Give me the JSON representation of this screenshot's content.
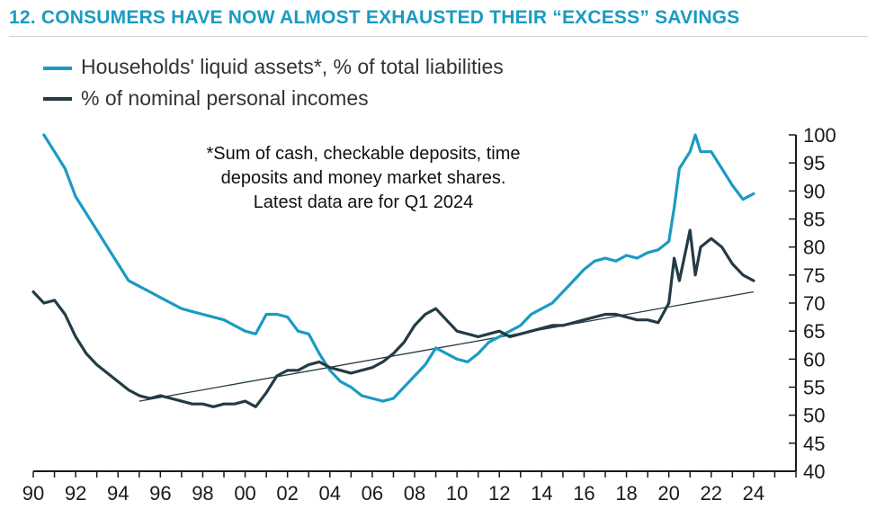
{
  "title": "12. CONSUMERS HAVE NOW ALMOST EXHAUSTED THEIR “EXCESS” SAVINGS",
  "legend": [
    {
      "label": "Households' liquid assets*, % of total liabilities",
      "color": "#1a9bc2"
    },
    {
      "label": "% of nominal personal incomes",
      "color": "#243b45"
    }
  ],
  "note": [
    "*Sum of cash, checkable deposits, time",
    "deposits and money market shares.",
    "Latest data are for Q1 2024"
  ],
  "chart_data": {
    "type": "line",
    "title": "12. CONSUMERS HAVE NOW ALMOST EXHAUSTED THEIR “EXCESS” SAVINGS",
    "x_ticks": [
      "90",
      "92",
      "94",
      "96",
      "98",
      "00",
      "02",
      "04",
      "06",
      "08",
      "10",
      "12",
      "14",
      "16",
      "18",
      "20",
      "22",
      "24"
    ],
    "y_ticks": [
      40,
      45,
      50,
      55,
      60,
      65,
      70,
      75,
      80,
      85,
      90,
      95,
      100
    ],
    "xlim": [
      1990,
      2026
    ],
    "ylim": [
      40,
      100
    ],
    "y_axis_side": "right",
    "grid": false,
    "legend_position": "top-left",
    "series": [
      {
        "name": "Households' liquid assets*, % of total liabilities",
        "color": "#1a9bc2",
        "x": [
          1990.5,
          1991,
          1991.5,
          1992,
          1992.5,
          1993,
          1993.5,
          1994,
          1994.5,
          1995,
          1995.5,
          1996,
          1996.5,
          1997,
          1997.5,
          1998,
          1998.5,
          1999,
          1999.5,
          2000,
          2000.5,
          2001,
          2001.5,
          2002,
          2002.5,
          2003,
          2003.5,
          2004,
          2004.5,
          2005,
          2005.5,
          2006,
          2006.5,
          2007,
          2007.5,
          2008,
          2008.5,
          2009,
          2009.5,
          2010,
          2010.5,
          2011,
          2011.5,
          2012,
          2012.5,
          2013,
          2013.5,
          2014,
          2014.5,
          2015,
          2015.5,
          2016,
          2016.5,
          2017,
          2017.5,
          2018,
          2018.5,
          2019,
          2019.5,
          2020,
          2020.25,
          2020.5,
          2021,
          2021.25,
          2021.5,
          2022,
          2022.5,
          2023,
          2023.5,
          2024
        ],
        "y": [
          100,
          97,
          94,
          89,
          86,
          83,
          80,
          77,
          74,
          73,
          72,
          71,
          70,
          69,
          68.5,
          68,
          67.5,
          67,
          66,
          65,
          64.5,
          68,
          68,
          67.5,
          65,
          64.5,
          61,
          58,
          56,
          55,
          53.5,
          53,
          52.5,
          53,
          55,
          57,
          59,
          62,
          61,
          60,
          59.5,
          61,
          63,
          64,
          65,
          66,
          68,
          69,
          70,
          72,
          74,
          76,
          77.5,
          78,
          77.5,
          78.5,
          78,
          79,
          79.5,
          81,
          87,
          94,
          97,
          100,
          97,
          97,
          94,
          91,
          88.5,
          89.5
        ]
      },
      {
        "name": "% of nominal personal incomes",
        "color": "#243b45",
        "x": [
          1990,
          1990.5,
          1991,
          1991.5,
          1992,
          1992.5,
          1993,
          1993.5,
          1994,
          1994.5,
          1995,
          1995.5,
          1996,
          1996.5,
          1997,
          1997.5,
          1998,
          1998.5,
          1999,
          1999.5,
          2000,
          2000.5,
          2001,
          2001.5,
          2002,
          2002.5,
          2003,
          2003.5,
          2004,
          2004.5,
          2005,
          2005.5,
          2006,
          2006.5,
          2007,
          2007.5,
          2008,
          2008.5,
          2009,
          2009.5,
          2010,
          2010.5,
          2011,
          2011.5,
          2012,
          2012.5,
          2013,
          2013.5,
          2014,
          2014.5,
          2015,
          2015.5,
          2016,
          2016.5,
          2017,
          2017.5,
          2018,
          2018.5,
          2019,
          2019.5,
          2020,
          2020.25,
          2020.5,
          2021,
          2021.25,
          2021.5,
          2022,
          2022.5,
          2023,
          2023.5,
          2024
        ],
        "y": [
          72,
          70,
          70.5,
          68,
          64,
          61,
          59,
          57.5,
          56,
          54.5,
          53.5,
          53,
          53.5,
          53,
          52.5,
          52,
          52,
          51.5,
          52,
          52,
          52.5,
          51.5,
          54,
          57,
          58,
          58,
          59,
          59.5,
          58.5,
          58,
          57.5,
          58,
          58.5,
          59.5,
          61,
          63,
          66,
          68,
          69,
          67,
          65,
          64.5,
          64,
          64.5,
          65,
          64,
          64.5,
          65,
          65.5,
          66,
          66,
          66.5,
          67,
          67.5,
          68,
          68,
          67.5,
          67,
          67,
          66.5,
          70,
          78,
          74,
          83,
          75,
          80,
          81.5,
          80,
          77,
          75,
          74
        ]
      }
    ],
    "reference_line": {
      "x": [
        1995,
        2024
      ],
      "y": [
        52.5,
        72
      ]
    },
    "annotation": [
      "*Sum of cash, checkable deposits, time",
      "deposits and money market shares.",
      "Latest data are for Q1 2024"
    ]
  }
}
